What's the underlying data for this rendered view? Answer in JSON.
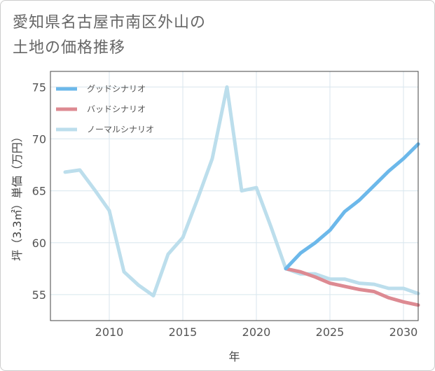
{
  "title_lines": [
    "愛知県名古屋市南区外山の",
    "土地の価格推移"
  ],
  "colors": {
    "good": "#6cb8ea",
    "bad": "#dd8a92",
    "normal": "#bcdeec",
    "grid": "#d8e6ee",
    "plot_border": "#444444"
  },
  "chart_data": {
    "type": "line",
    "title": "愛知県名古屋市南区外山の土地の価格推移",
    "xlabel": "年",
    "ylabel": "坪（3.3㎡）単価（万円）",
    "xlim": [
      2006,
      2031
    ],
    "ylim": [
      52.5,
      76.5
    ],
    "xticks": [
      2010,
      2015,
      2020,
      2025,
      2030
    ],
    "yticks": [
      55,
      60,
      65,
      70,
      75
    ],
    "legend_position": "top-left",
    "series": [
      {
        "key": "normal",
        "name": "ノーマルシナリオ",
        "x": [
          2007,
          2008,
          2009,
          2010,
          2011,
          2012,
          2013,
          2014,
          2015,
          2016,
          2017,
          2018,
          2019,
          2020,
          2021,
          2022,
          2023,
          2024,
          2025,
          2026,
          2027,
          2028,
          2029,
          2030,
          2031
        ],
        "y": [
          66.8,
          67.0,
          65.1,
          63.1,
          57.2,
          55.9,
          54.9,
          58.9,
          60.5,
          64.2,
          68.1,
          75.0,
          65.0,
          65.3,
          61.5,
          57.5,
          57.0,
          57.0,
          56.5,
          56.5,
          56.1,
          56.0,
          55.6,
          55.6,
          55.1
        ]
      },
      {
        "key": "bad",
        "name": "バッドシナリオ",
        "x": [
          2022,
          2023,
          2024,
          2025,
          2026,
          2027,
          2028,
          2029,
          2030,
          2031
        ],
        "y": [
          57.5,
          57.2,
          56.7,
          56.1,
          55.8,
          55.5,
          55.3,
          54.7,
          54.3,
          54.0
        ]
      },
      {
        "key": "good",
        "name": "グッドシナリオ",
        "x": [
          2022,
          2023,
          2024,
          2025,
          2026,
          2027,
          2028,
          2029,
          2030,
          2031
        ],
        "y": [
          57.5,
          59.0,
          60.0,
          61.2,
          63.0,
          64.1,
          65.5,
          66.9,
          68.1,
          69.5
        ]
      }
    ],
    "legend": [
      {
        "key": "good",
        "name": "グッドシナリオ"
      },
      {
        "key": "bad",
        "name": "バッドシナリオ"
      },
      {
        "key": "normal",
        "name": "ノーマルシナリオ"
      }
    ]
  }
}
